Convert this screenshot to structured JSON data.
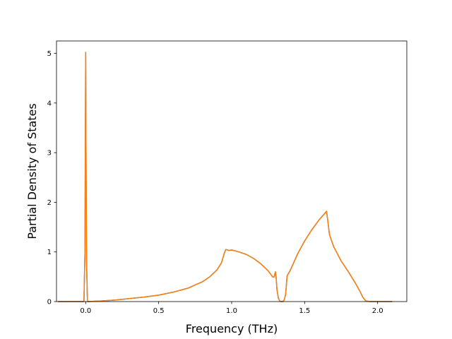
{
  "chart_data": {
    "type": "line",
    "title": "",
    "xlabel": "Frequency (THz)",
    "ylabel": "Partial Density of States",
    "xlim": [
      -0.2,
      2.2
    ],
    "ylim": [
      0,
      5.25
    ],
    "grid": false,
    "x_ticks": [
      {
        "value": 0.0,
        "label": "0.0"
      },
      {
        "value": 0.5,
        "label": "0.5"
      },
      {
        "value": 1.0,
        "label": "1.0"
      },
      {
        "value": 1.5,
        "label": "1.5"
      },
      {
        "value": 2.0,
        "label": "2.0"
      }
    ],
    "y_ticks": [
      {
        "value": 0,
        "label": "0"
      },
      {
        "value": 1,
        "label": "1"
      },
      {
        "value": 2,
        "label": "2"
      },
      {
        "value": 3,
        "label": "3"
      },
      {
        "value": 4,
        "label": "4"
      },
      {
        "value": 5,
        "label": "5"
      }
    ],
    "colors": {
      "series_primary": "#1f77b4",
      "series_overlay": "#ff7f0e",
      "axes": "#000000"
    },
    "series": [
      {
        "color": "#1f77b4",
        "x": [
          -0.19,
          -0.02,
          -0.012,
          -0.005,
          -0.002,
          0.0,
          0.003,
          0.006,
          0.012,
          0.02,
          0.1,
          0.2,
          0.3,
          0.4,
          0.5,
          0.6,
          0.7,
          0.8,
          0.85,
          0.9,
          0.93,
          0.95,
          0.96,
          0.98,
          1.0,
          1.05,
          1.1,
          1.15,
          1.2,
          1.25,
          1.28,
          1.29,
          1.3,
          1.305,
          1.31,
          1.32,
          1.33,
          1.34,
          1.35,
          1.36,
          1.37,
          1.38,
          1.39,
          1.4,
          1.42,
          1.45,
          1.5,
          1.55,
          1.6,
          1.63,
          1.64,
          1.65,
          1.66,
          1.67,
          1.7,
          1.75,
          1.8,
          1.85,
          1.88,
          1.9,
          1.92,
          1.95,
          2.0,
          2.1
        ],
        "y": [
          0,
          0,
          0,
          1.0,
          3.5,
          5.02,
          2.5,
          0.8,
          0,
          0,
          0.01,
          0.03,
          0.06,
          0.09,
          0.13,
          0.19,
          0.27,
          0.4,
          0.5,
          0.64,
          0.78,
          0.98,
          1.05,
          1.03,
          1.04,
          1.0,
          0.95,
          0.87,
          0.76,
          0.62,
          0.5,
          0.49,
          0.6,
          0.48,
          0.25,
          0.07,
          0.01,
          0.0,
          0.0,
          0.03,
          0.15,
          0.52,
          0.57,
          0.62,
          0.75,
          0.95,
          1.22,
          1.45,
          1.65,
          1.75,
          1.78,
          1.82,
          1.6,
          1.35,
          1.1,
          0.82,
          0.6,
          0.36,
          0.2,
          0.08,
          0.01,
          0,
          0,
          0
        ]
      },
      {
        "color": "#ff7f0e",
        "x": [
          -0.19,
          -0.02,
          -0.012,
          -0.005,
          -0.002,
          0.0,
          0.003,
          0.006,
          0.012,
          0.02,
          0.1,
          0.2,
          0.3,
          0.4,
          0.5,
          0.6,
          0.7,
          0.8,
          0.85,
          0.9,
          0.93,
          0.95,
          0.96,
          0.98,
          1.0,
          1.05,
          1.1,
          1.15,
          1.2,
          1.25,
          1.28,
          1.29,
          1.3,
          1.305,
          1.31,
          1.32,
          1.33,
          1.34,
          1.35,
          1.36,
          1.37,
          1.38,
          1.39,
          1.4,
          1.42,
          1.45,
          1.5,
          1.55,
          1.6,
          1.63,
          1.64,
          1.65,
          1.66,
          1.67,
          1.7,
          1.75,
          1.8,
          1.85,
          1.88,
          1.9,
          1.92,
          1.95,
          2.0,
          2.1
        ],
        "y": [
          0,
          0,
          0,
          1.0,
          3.5,
          5.02,
          2.5,
          0.8,
          0,
          0,
          0.01,
          0.03,
          0.06,
          0.09,
          0.13,
          0.19,
          0.27,
          0.4,
          0.5,
          0.64,
          0.78,
          0.98,
          1.05,
          1.03,
          1.04,
          1.0,
          0.95,
          0.87,
          0.76,
          0.62,
          0.5,
          0.49,
          0.6,
          0.48,
          0.25,
          0.07,
          0.01,
          0.0,
          0.0,
          0.03,
          0.15,
          0.52,
          0.57,
          0.62,
          0.75,
          0.95,
          1.22,
          1.45,
          1.65,
          1.75,
          1.78,
          1.82,
          1.6,
          1.35,
          1.1,
          0.82,
          0.6,
          0.36,
          0.2,
          0.08,
          0.01,
          0,
          0,
          0
        ]
      }
    ]
  }
}
